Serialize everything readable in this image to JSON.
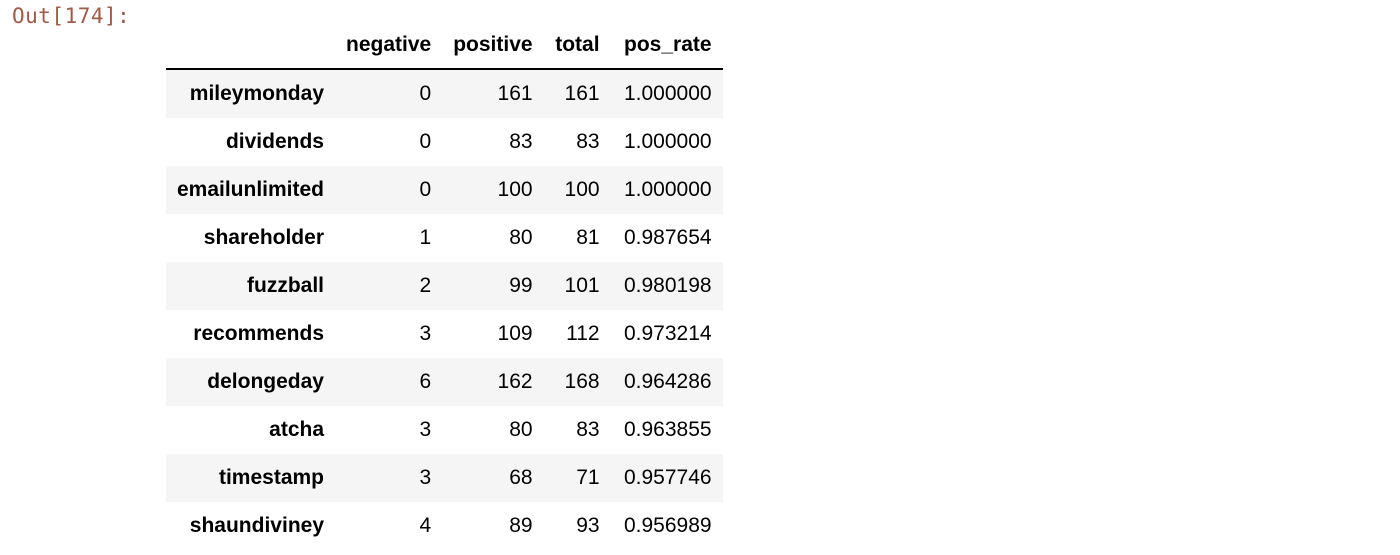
{
  "cell_output": {
    "prompt": "Out[174]:"
  },
  "table": {
    "columns": [
      "negative",
      "positive",
      "total",
      "pos_rate"
    ],
    "rows": [
      {
        "index": "mileymonday",
        "negative": "0",
        "positive": "161",
        "total": "161",
        "pos_rate": "1.000000"
      },
      {
        "index": "dividends",
        "negative": "0",
        "positive": "83",
        "total": "83",
        "pos_rate": "1.000000"
      },
      {
        "index": "emailunlimited",
        "negative": "0",
        "positive": "100",
        "total": "100",
        "pos_rate": "1.000000"
      },
      {
        "index": "shareholder",
        "negative": "1",
        "positive": "80",
        "total": "81",
        "pos_rate": "0.987654"
      },
      {
        "index": "fuzzball",
        "negative": "2",
        "positive": "99",
        "total": "101",
        "pos_rate": "0.980198"
      },
      {
        "index": "recommends",
        "negative": "3",
        "positive": "109",
        "total": "112",
        "pos_rate": "0.973214"
      },
      {
        "index": "delongeday",
        "negative": "6",
        "positive": "162",
        "total": "168",
        "pos_rate": "0.964286"
      },
      {
        "index": "atcha",
        "negative": "3",
        "positive": "80",
        "total": "83",
        "pos_rate": "0.963855"
      },
      {
        "index": "timestamp",
        "negative": "3",
        "positive": "68",
        "total": "71",
        "pos_rate": "0.957746"
      },
      {
        "index": "shaundiviney",
        "negative": "4",
        "positive": "89",
        "total": "93",
        "pos_rate": "0.956989"
      }
    ]
  }
}
